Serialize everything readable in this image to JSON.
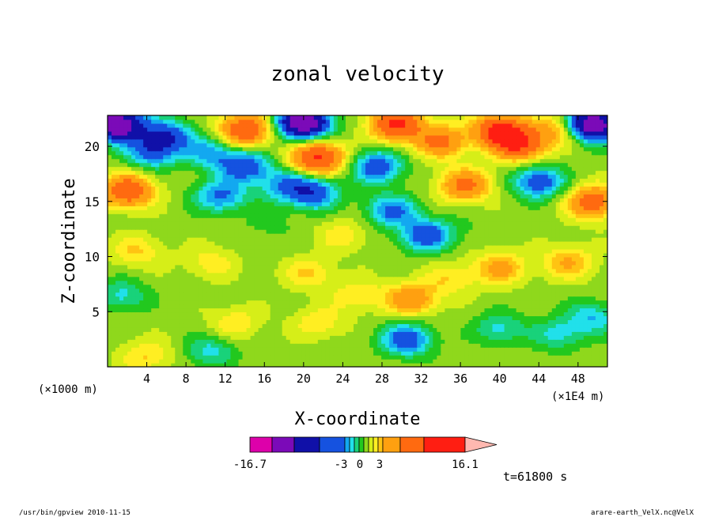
{
  "chart_data": {
    "type": "heatmap",
    "title": "zonal velocity",
    "xlabel": "X-coordinate",
    "ylabel": "Z-coordinate",
    "x_unit_left": "(×1000 m)",
    "x_unit_right": "(×1E4 m)",
    "xlim": [
      0,
      51
    ],
    "ylim": [
      0,
      22.8
    ],
    "x_ticks": [
      4,
      8,
      12,
      16,
      20,
      24,
      28,
      32,
      36,
      40,
      44,
      48
    ],
    "y_ticks": [
      5,
      10,
      15,
      20
    ],
    "colorbar": {
      "min_label": "-16.7",
      "max_label": "16.1",
      "mid_labels": [
        "-3",
        "0",
        "3"
      ],
      "levels": [
        -16.7,
        -13,
        -9,
        -6,
        -4,
        -3,
        -2,
        -1,
        0,
        1,
        2,
        3,
        4,
        6,
        9,
        13,
        16.1
      ],
      "colors": [
        "#dd00aa",
        "#7b0ab8",
        "#1010a8",
        "#1552e0",
        "#13a8f0",
        "#21e0ea",
        "#19d27a",
        "#22c81e",
        "#8fd81c",
        "#d6ee18",
        "#ffee22",
        "#ffc412",
        "#ffa010",
        "#ff6a10",
        "#ff1e12",
        "#fa7878",
        "#ffb8b0"
      ]
    },
    "blobs": [
      {
        "x": 2,
        "z": 16,
        "v": 8
      },
      {
        "x": 1,
        "z": 22,
        "v": -13
      },
      {
        "x": 6,
        "z": 21,
        "v": -6
      },
      {
        "x": 4.5,
        "z": 19.5,
        "v": -5
      },
      {
        "x": 10.5,
        "z": 19.5,
        "v": -4
      },
      {
        "x": 14,
        "z": 21.5,
        "v": 8
      },
      {
        "x": 14,
        "z": 18.2,
        "v": -6
      },
      {
        "x": 11.5,
        "z": 15.5,
        "v": -5
      },
      {
        "x": 18,
        "z": 16.5,
        "v": -4
      },
      {
        "x": 21,
        "z": 15.8,
        "v": -6
      },
      {
        "x": 20,
        "z": 22.2,
        "v": -13
      },
      {
        "x": 21.5,
        "z": 19,
        "v": 9
      },
      {
        "x": 27.5,
        "z": 18.2,
        "v": -6
      },
      {
        "x": 29,
        "z": 14.2,
        "v": -5
      },
      {
        "x": 32.5,
        "z": 12,
        "v": -6
      },
      {
        "x": 29.5,
        "z": 22,
        "v": 9
      },
      {
        "x": 34,
        "z": 20.5,
        "v": 6
      },
      {
        "x": 36.5,
        "z": 16.5,
        "v": 6
      },
      {
        "x": 40,
        "z": 21.5,
        "v": 9
      },
      {
        "x": 42,
        "z": 20.2,
        "v": 8
      },
      {
        "x": 44,
        "z": 16.8,
        "v": -6
      },
      {
        "x": 46,
        "z": 21.5,
        "v": 4
      },
      {
        "x": 49.5,
        "z": 22,
        "v": -13
      },
      {
        "x": 49.5,
        "z": 15,
        "v": 7
      },
      {
        "x": 3,
        "z": 10.5,
        "v": 2.5
      },
      {
        "x": 10.5,
        "z": 9.5,
        "v": 2
      },
      {
        "x": 13,
        "z": 4,
        "v": 2.2
      },
      {
        "x": 20.5,
        "z": 8.5,
        "v": 2.5
      },
      {
        "x": 21.5,
        "z": 4,
        "v": 2.2
      },
      {
        "x": 25.5,
        "z": 6.5,
        "v": 2.2
      },
      {
        "x": 31,
        "z": 6.2,
        "v": 5
      },
      {
        "x": 30.5,
        "z": 2.5,
        "v": -6
      },
      {
        "x": 35,
        "z": 8,
        "v": 2.2
      },
      {
        "x": 40,
        "z": 9,
        "v": 4
      },
      {
        "x": 47,
        "z": 9.5,
        "v": 3.5
      },
      {
        "x": 40,
        "z": 3.5,
        "v": -3
      },
      {
        "x": 46,
        "z": 3,
        "v": -3
      },
      {
        "x": 49.5,
        "z": 4.5,
        "v": -3.5
      },
      {
        "x": 1.5,
        "z": 6.5,
        "v": -3
      },
      {
        "x": 10.5,
        "z": 1.5,
        "v": -3
      },
      {
        "x": 4,
        "z": 1,
        "v": 2.5
      },
      {
        "x": 16.5,
        "z": 13,
        "v": -1
      },
      {
        "x": 24,
        "z": 12,
        "v": 2
      },
      {
        "x": 37,
        "z": 12.5,
        "v": -0.5
      }
    ]
  },
  "time_label": "t=61800 s",
  "footer": {
    "left": "/usr/bin/gpview   2010-11-15",
    "right": "arare-earth_VelX.nc@VelX"
  }
}
